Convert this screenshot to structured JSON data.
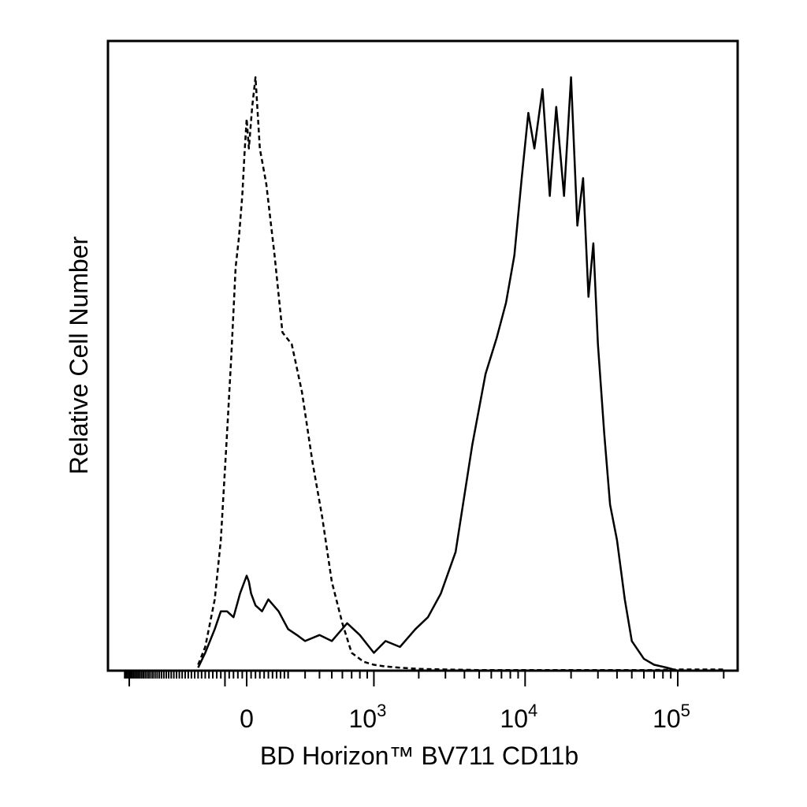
{
  "chart_data": {
    "type": "line",
    "title": "",
    "xlabel": "BD Horizon™ BV711 CD11b",
    "ylabel": "Relative Cell Number",
    "x_scale": "biexponential",
    "y_ticks": false,
    "grid": false,
    "legend": "none",
    "x_tick_labels": [
      {
        "value": 0,
        "base": "0",
        "exp": ""
      },
      {
        "value": 1000,
        "base": "10",
        "exp": "3"
      },
      {
        "value": 10000,
        "base": "10",
        "exp": "4"
      },
      {
        "value": 100000,
        "base": "10",
        "exp": "5"
      }
    ],
    "series": [
      {
        "style": "dashed",
        "x": [
          -240,
          -200,
          -150,
          -120,
          -90,
          -70,
          -50,
          -35,
          -20,
          -10,
          0,
          10,
          25,
          40,
          60,
          90,
          130,
          170,
          220,
          280,
          350,
          420,
          500,
          600,
          700,
          850,
          1000,
          1200,
          1500,
          2000,
          3000,
          5000,
          10000,
          30000,
          70000,
          100000,
          200000
        ],
        "y": [
          1,
          4,
          12,
          22,
          40,
          53,
          68,
          73,
          80,
          87,
          93,
          88,
          95,
          100,
          88,
          82,
          70,
          57,
          55,
          47,
          35,
          26,
          15,
          8,
          3,
          1.5,
          1,
          0.7,
          0.5,
          0.3,
          0.2,
          0.1,
          0.1,
          0.1,
          0.1,
          0.2,
          0.2
        ]
      },
      {
        "style": "solid",
        "x": [
          -240,
          -200,
          -150,
          -120,
          -90,
          -60,
          -30,
          -10,
          0,
          10,
          20,
          40,
          70,
          100,
          150,
          200,
          250,
          300,
          400,
          500,
          650,
          800,
          1000,
          1200,
          1500,
          1900,
          2300,
          2800,
          3500,
          4500,
          5500,
          6500,
          7500,
          8500,
          9500,
          10500,
          11500,
          13000,
          14500,
          16000,
          18000,
          20000,
          22000,
          24000,
          26000,
          28000,
          30000,
          33000,
          36000,
          40000,
          45000,
          50000,
          60000,
          70000,
          85000,
          100000,
          200000
        ],
        "y": [
          0.5,
          3,
          7,
          10,
          10,
          9,
          13,
          15,
          16,
          15,
          13,
          11,
          10,
          12,
          10,
          7,
          6,
          5,
          6,
          5,
          8,
          6,
          3,
          5,
          4,
          7,
          9,
          13,
          20,
          38,
          50,
          56,
          62,
          70,
          83,
          94,
          88,
          98,
          80,
          95,
          80,
          100,
          75,
          83,
          63,
          72,
          55,
          40,
          28,
          22,
          12,
          5,
          2,
          1,
          0.5,
          0,
          0
        ]
      }
    ]
  }
}
